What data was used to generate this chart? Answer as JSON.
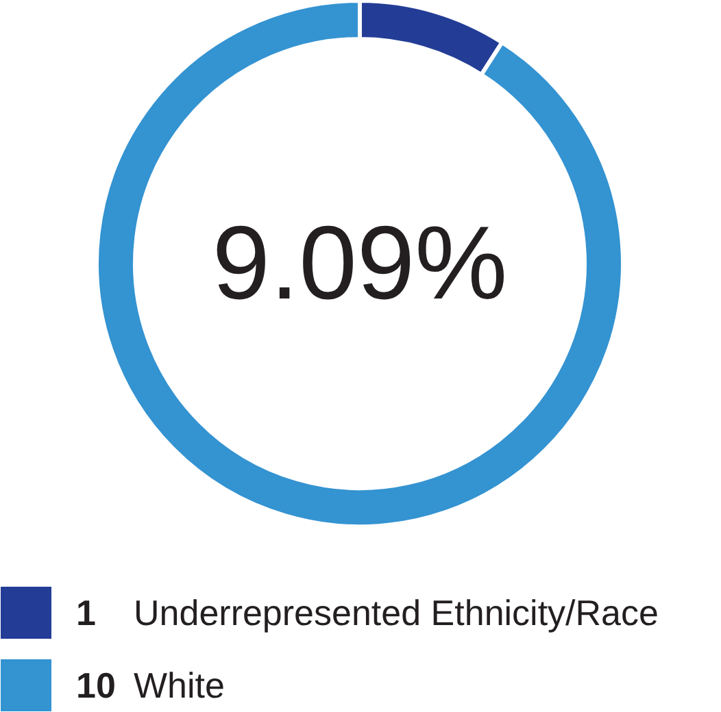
{
  "chart_data": {
    "type": "donut",
    "categories": [
      "Underrepresented Ethnicity/Race",
      "White"
    ],
    "values": [
      1,
      10
    ],
    "colors": [
      "#233d96",
      "#3493d1"
    ],
    "annotations": [
      "9.09%"
    ],
    "data_labels": true,
    "legend": "bottom"
  }
}
